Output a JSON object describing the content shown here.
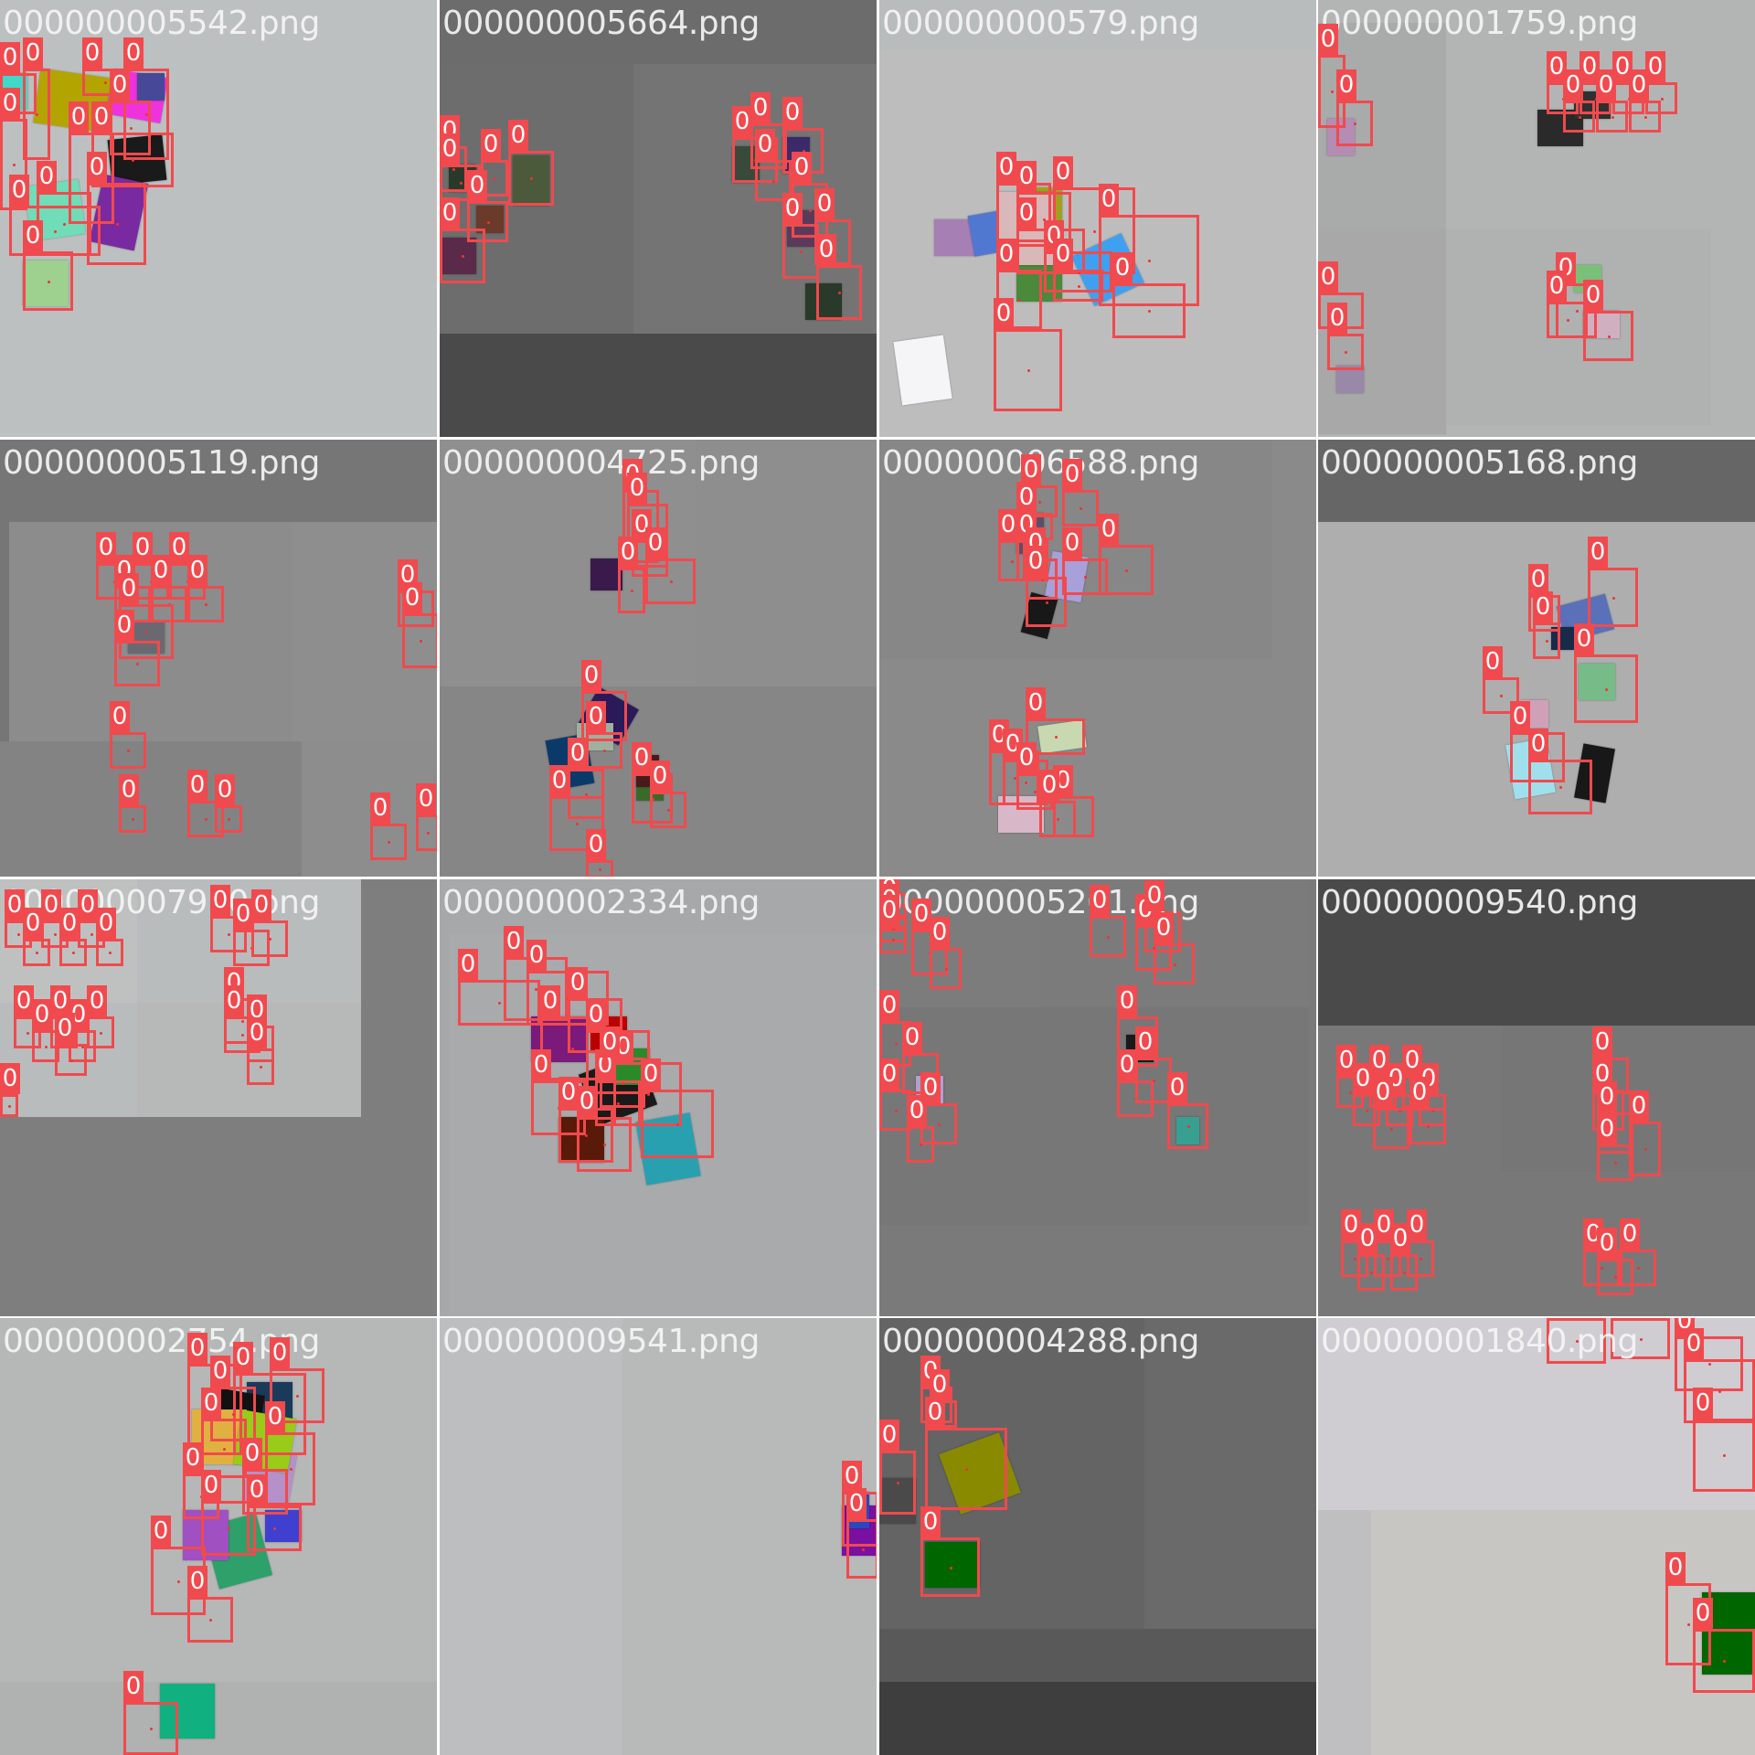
{
  "colors": {
    "box": "#f04a4e",
    "label_text": "#ffffff",
    "filename_text": "#f0f0f0"
  },
  "tiles": [
    {
      "filename": "000000005542.png",
      "class_label": "0"
    },
    {
      "filename": "000000005664.png",
      "class_label": "0"
    },
    {
      "filename": "000000000579.png",
      "class_label": "0"
    },
    {
      "filename": "000000001759.png",
      "class_label": "0"
    },
    {
      "filename": "000000005119.png",
      "class_label": "0"
    },
    {
      "filename": "000000004725.png",
      "class_label": "0"
    },
    {
      "filename": "000000006588.png",
      "class_label": "0"
    },
    {
      "filename": "000000005168.png",
      "class_label": "0"
    },
    {
      "filename": "000000007910.png",
      "class_label": "0"
    },
    {
      "filename": "000000002334.png",
      "class_label": "0"
    },
    {
      "filename": "000000005261.png",
      "class_label": "0"
    },
    {
      "filename": "000000009540.png",
      "class_label": "0"
    },
    {
      "filename": "000000002754.png",
      "class_label": "0"
    },
    {
      "filename": "000000009541.png",
      "class_label": "0"
    },
    {
      "filename": "000000004288.png",
      "class_label": "0"
    },
    {
      "filename": "000000001840.png",
      "class_label": "0"
    }
  ]
}
